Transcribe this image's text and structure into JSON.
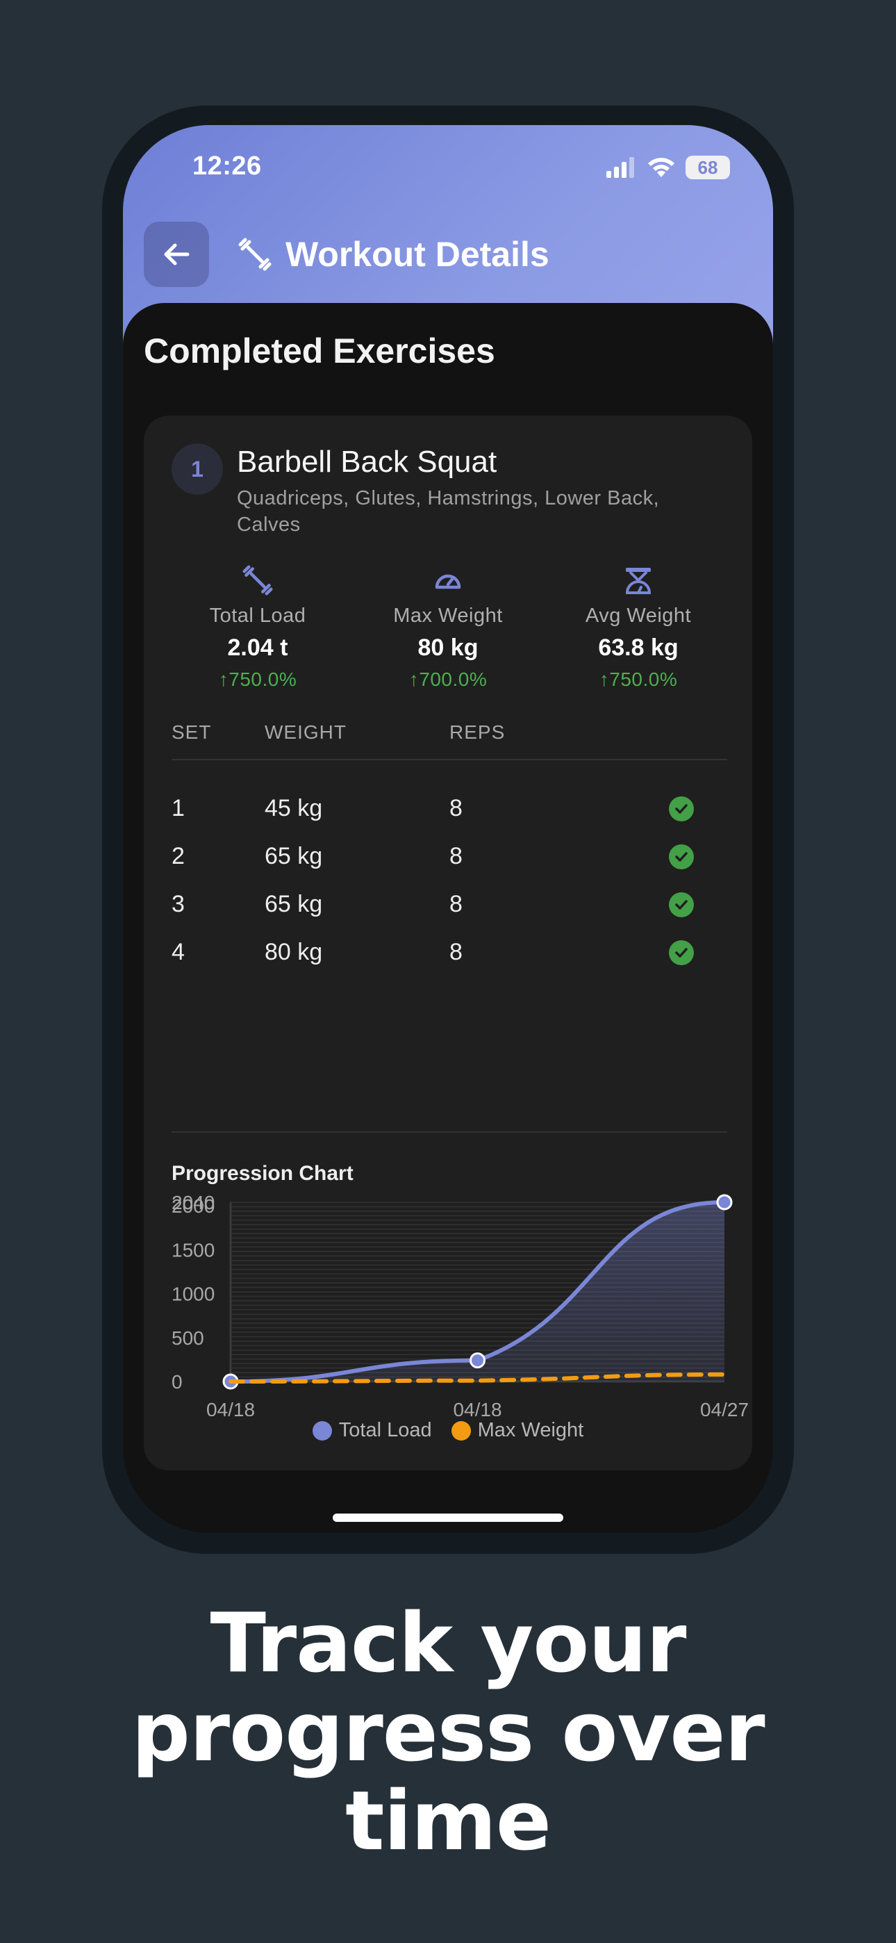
{
  "status": {
    "time": "12:26",
    "battery": "68"
  },
  "appbar": {
    "title": "Workout Details"
  },
  "section_title": "Completed Exercises",
  "exercise": {
    "number": "1",
    "name": "Barbell Back Squat",
    "muscles": "Quadriceps, Glutes, Hamstrings, Lower Back, Calves",
    "stats": [
      {
        "icon": "dumbbell-icon",
        "label": "Total Load",
        "value": "2.04 t",
        "change": "750.0%"
      },
      {
        "icon": "speedometer-icon",
        "label": "Max Weight",
        "value": "80 kg",
        "change": "700.0%"
      },
      {
        "icon": "scale-icon",
        "label": "Avg Weight",
        "value": "63.8 kg",
        "change": "750.0%"
      }
    ],
    "table_headers": {
      "set": "SET",
      "weight": "WEIGHT",
      "reps": "REPS"
    },
    "sets": [
      {
        "set": "1",
        "weight": "45 kg",
        "reps": "8"
      },
      {
        "set": "2",
        "weight": "65 kg",
        "reps": "8"
      },
      {
        "set": "3",
        "weight": "65 kg",
        "reps": "8"
      },
      {
        "set": "4",
        "weight": "80 kg",
        "reps": "8"
      }
    ]
  },
  "chart_title": "Progression Chart",
  "chart_data": {
    "type": "line",
    "categories": [
      "04/18",
      "04/18",
      "04/27"
    ],
    "series": [
      {
        "name": "Total Load",
        "values": [
          0,
          240,
          2040
        ],
        "color": "#7a86d6",
        "style": "solid",
        "fill": true
      },
      {
        "name": "Max Weight",
        "values": [
          0,
          10,
          80
        ],
        "color": "#f39c12",
        "style": "dashed",
        "fill": false
      }
    ],
    "y_ticks": [
      "0",
      "500",
      "1000",
      "1500",
      "2000",
      "2040"
    ],
    "ylim": [
      0,
      2040
    ],
    "grid": true,
    "legend": "bottom-center"
  },
  "tagline": [
    "Track your",
    "progress over",
    "time"
  ]
}
